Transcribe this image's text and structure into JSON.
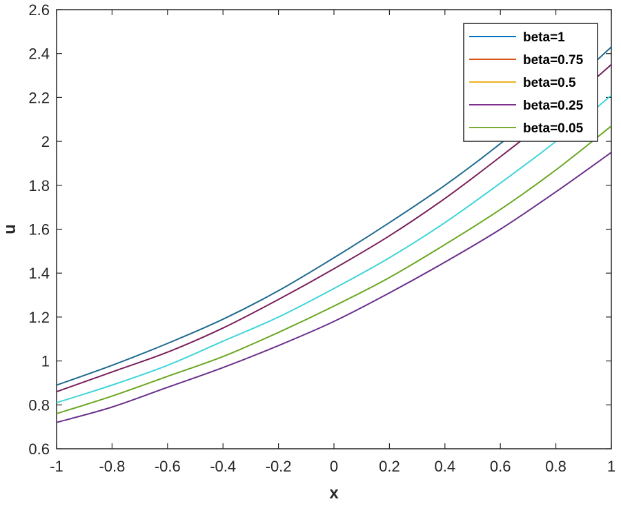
{
  "chart_data": {
    "type": "line",
    "title": "",
    "xlabel": "x",
    "ylabel": "u",
    "xlim": [
      -1,
      1
    ],
    "ylim": [
      0.6,
      2.6
    ],
    "xticks": [
      -1,
      -0.8,
      -0.6,
      -0.4,
      -0.2,
      0,
      0.2,
      0.4,
      0.6,
      0.8,
      1
    ],
    "xtick_labels": [
      "-1",
      "-0.8",
      "-0.6",
      "-0.4",
      "-0.2",
      "0",
      "0.2",
      "0.4",
      "0.6",
      "0.8",
      "1"
    ],
    "yticks": [
      0.6,
      0.8,
      1,
      1.2,
      1.4,
      1.6,
      1.8,
      2,
      2.2,
      2.4,
      2.6
    ],
    "ytick_labels": [
      "0.6",
      "0.8",
      "1",
      "1.2",
      "1.4",
      "1.6",
      "1.8",
      "2",
      "2.2",
      "2.4",
      "2.6"
    ],
    "grid": false,
    "legend_position": "top-right",
    "x": [
      -1,
      -0.8,
      -0.6,
      -0.4,
      -0.2,
      0,
      0.2,
      0.4,
      0.6,
      0.8,
      1
    ],
    "legend": [
      {
        "name": "beta=1",
        "color": "#0072BD"
      },
      {
        "name": "beta=0.75",
        "color": "#D95319"
      },
      {
        "name": "beta=0.5",
        "color": "#EDB120"
      },
      {
        "name": "beta=0.25",
        "color": "#7E2F8E"
      },
      {
        "name": "beta=0.05",
        "color": "#77AC30"
      }
    ],
    "series": [
      {
        "name": "beta=1",
        "color": "#1f6a8f",
        "values": [
          0.89,
          0.98,
          1.08,
          1.19,
          1.32,
          1.47,
          1.63,
          1.8,
          1.99,
          2.2,
          2.43
        ]
      },
      {
        "name": "beta=0.75",
        "color": "#7a1f5c",
        "values": [
          0.86,
          0.95,
          1.04,
          1.15,
          1.28,
          1.42,
          1.57,
          1.74,
          1.93,
          2.13,
          2.35
        ]
      },
      {
        "name": "beta=0.5",
        "color": "#3fd4d8",
        "values": [
          0.81,
          0.89,
          0.98,
          1.09,
          1.2,
          1.33,
          1.47,
          1.63,
          1.81,
          2.0,
          2.21
        ]
      },
      {
        "name": "beta=0.25",
        "color": "#6a2f8a",
        "values": [
          0.72,
          0.79,
          0.88,
          0.97,
          1.07,
          1.18,
          1.31,
          1.45,
          1.6,
          1.77,
          1.95
        ]
      },
      {
        "name": "beta=0.05",
        "color": "#6aa620",
        "values": [
          0.76,
          0.84,
          0.93,
          1.02,
          1.13,
          1.25,
          1.38,
          1.53,
          1.69,
          1.87,
          2.07
        ]
      }
    ]
  }
}
